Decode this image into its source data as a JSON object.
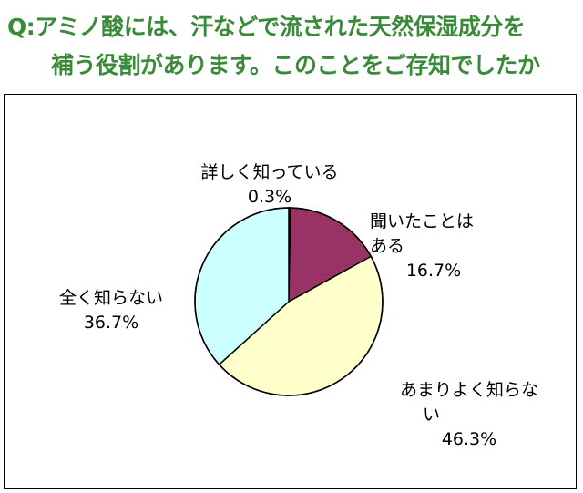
{
  "question": {
    "line1": "Q:アミノ酸には、汗などで流された天然保湿成分を",
    "line2": "補う役割があります。このことをご存知でしたか"
  },
  "chart_data": {
    "type": "pie",
    "title": "Q:アミノ酸には、汗などで流された天然保湿成分を補う役割があります。このことをご存知でしたか",
    "slices": [
      {
        "label": "詳しく知っている",
        "value": 0.3,
        "value_label": "0.3%",
        "color": "#1a1a1a"
      },
      {
        "label": "聞いたことはある",
        "value": 16.7,
        "value_label": "16.7%",
        "color": "#993366"
      },
      {
        "label": "あまりよく知らない",
        "value": 46.3,
        "value_label": "46.3%",
        "color": "#ffffcc"
      },
      {
        "label": "全く知らない",
        "value": 36.7,
        "value_label": "36.7%",
        "color": "#ccffff"
      }
    ],
    "start_angle_deg": 0,
    "direction": "clockwise"
  },
  "labels": {
    "detail_line1": "詳しく知っている",
    "detail_value": "0.3%",
    "heard_line1": "聞いたことは",
    "heard_line2": "ある",
    "heard_value": "16.7%",
    "notwell_line1": "あまりよく知らな",
    "notwell_line2": "い",
    "notwell_value": "46.3%",
    "none_line1": "全く知らない",
    "none_value": "36.7%"
  }
}
